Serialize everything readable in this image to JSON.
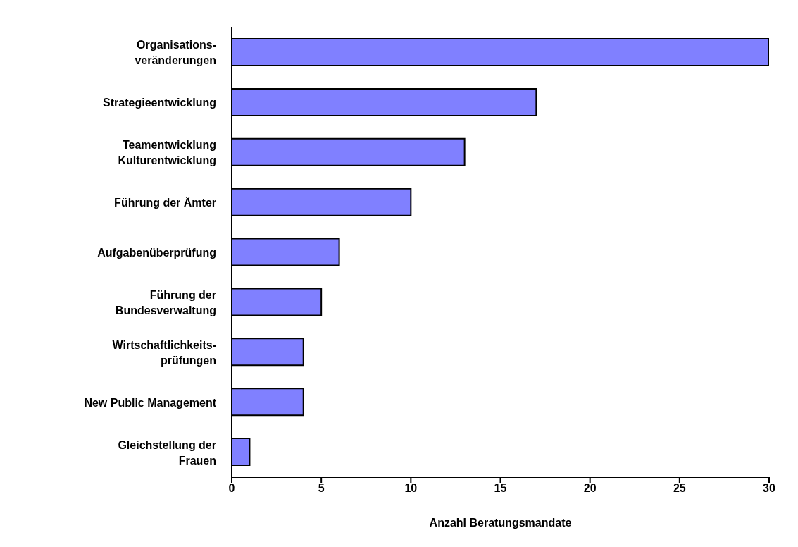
{
  "chart_data": {
    "type": "bar",
    "orientation": "horizontal",
    "xlabel": "Anzahl Beratungsmandate",
    "categories": [
      "Organisations-\nveränderungen",
      "Strategieentwicklung",
      "Teamentwicklung\nKulturentwicklung",
      "Führung der Ämter",
      "Aufgabenüberprüfung",
      "Führung der\nBundesverwaltung",
      "Wirtschaftlichkeits-\nprüfungen",
      "New Public Management",
      "Gleichstellung der\nFrauen"
    ],
    "values": [
      30,
      17,
      13,
      10,
      6,
      5,
      4,
      4,
      1
    ],
    "color": "#8080ff",
    "xlim": [
      0,
      30
    ],
    "xticks": [
      0,
      5,
      10,
      15,
      20,
      25,
      30
    ]
  }
}
